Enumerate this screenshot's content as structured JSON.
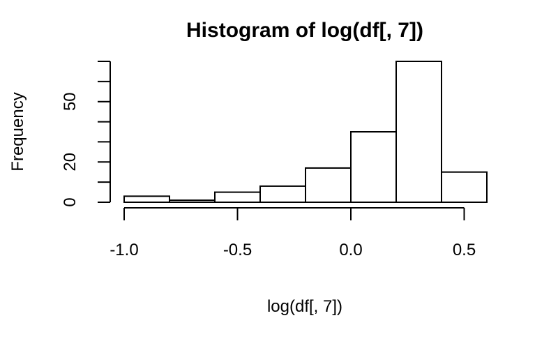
{
  "chart_data": {
    "type": "bar",
    "title": "Histogram of log(df[, 7])",
    "xlabel": "log(df[, 7])",
    "ylabel": "Frequency",
    "bins": [
      {
        "from": -1.0,
        "to": -0.8,
        "count": 3
      },
      {
        "from": -0.8,
        "to": -0.6,
        "count": 1
      },
      {
        "from": -0.6,
        "to": -0.4,
        "count": 5
      },
      {
        "from": -0.4,
        "to": -0.2,
        "count": 8
      },
      {
        "from": -0.2,
        "to": 0.0,
        "count": 17
      },
      {
        "from": 0.0,
        "to": 0.2,
        "count": 35
      },
      {
        "from": 0.2,
        "to": 0.4,
        "count": 70
      },
      {
        "from": 0.4,
        "to": 0.6,
        "count": 15
      }
    ],
    "x_ticks": [
      {
        "value": -1.0,
        "label": "-1.0"
      },
      {
        "value": -0.5,
        "label": "-0.5"
      },
      {
        "value": 0.0,
        "label": "0.0"
      },
      {
        "value": 0.5,
        "label": "0.5"
      }
    ],
    "y_ticks": [
      {
        "value": 0,
        "label": "0"
      },
      {
        "value": 10,
        "label": ""
      },
      {
        "value": 20,
        "label": "20"
      },
      {
        "value": 30,
        "label": ""
      },
      {
        "value": 40,
        "label": ""
      },
      {
        "value": 50,
        "label": "50"
      },
      {
        "value": 60,
        "label": ""
      },
      {
        "value": 70,
        "label": ""
      }
    ],
    "xlim": [
      -1.0,
      0.6
    ],
    "ylim": [
      0,
      70
    ],
    "grid": false,
    "colors": {
      "bar_fill": "#ffffff",
      "stroke": "#000000"
    }
  }
}
